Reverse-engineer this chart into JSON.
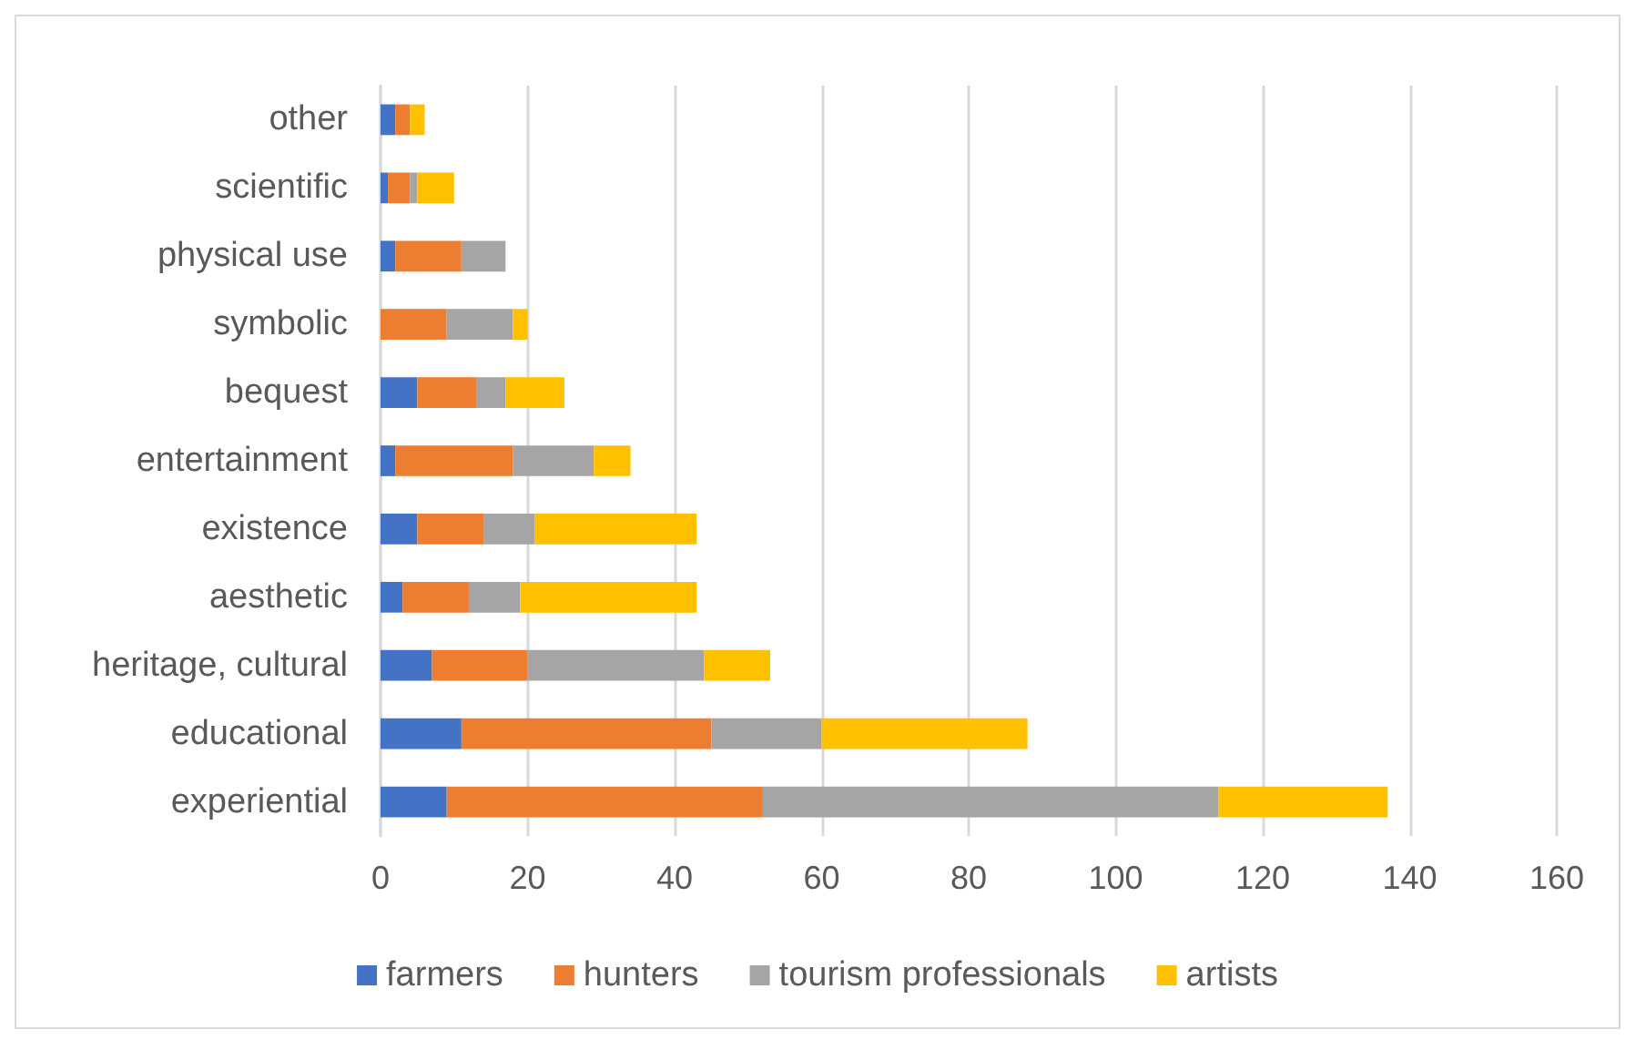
{
  "chart_data": {
    "type": "bar",
    "orientation": "horizontal",
    "stacked": true,
    "categories": [
      "other",
      "scientific",
      "physical use",
      "symbolic",
      "bequest",
      "entertainment",
      "existence",
      "aesthetic",
      "heritage, cultural",
      "educational",
      "experiential"
    ],
    "series": [
      {
        "name": "farmers",
        "color": "#4472c4",
        "values": [
          2,
          1,
          2,
          0,
          5,
          2,
          5,
          3,
          7,
          11,
          9
        ]
      },
      {
        "name": "hunters",
        "color": "#ed7d31",
        "values": [
          2,
          3,
          9,
          9,
          8,
          16,
          9,
          9,
          13,
          34,
          43
        ]
      },
      {
        "name": "tourism professionals",
        "color": "#a5a5a5",
        "values": [
          0,
          1,
          6,
          9,
          4,
          11,
          7,
          7,
          24,
          15,
          62
        ]
      },
      {
        "name": "artists",
        "color": "#ffc000",
        "values": [
          2,
          5,
          0,
          2,
          8,
          5,
          22,
          24,
          9,
          28,
          23
        ]
      }
    ],
    "xlim": [
      0,
      160
    ],
    "xticks": [
      0,
      20,
      40,
      60,
      80,
      100,
      120,
      140,
      160
    ],
    "grid": "x",
    "legend": "bottom"
  }
}
